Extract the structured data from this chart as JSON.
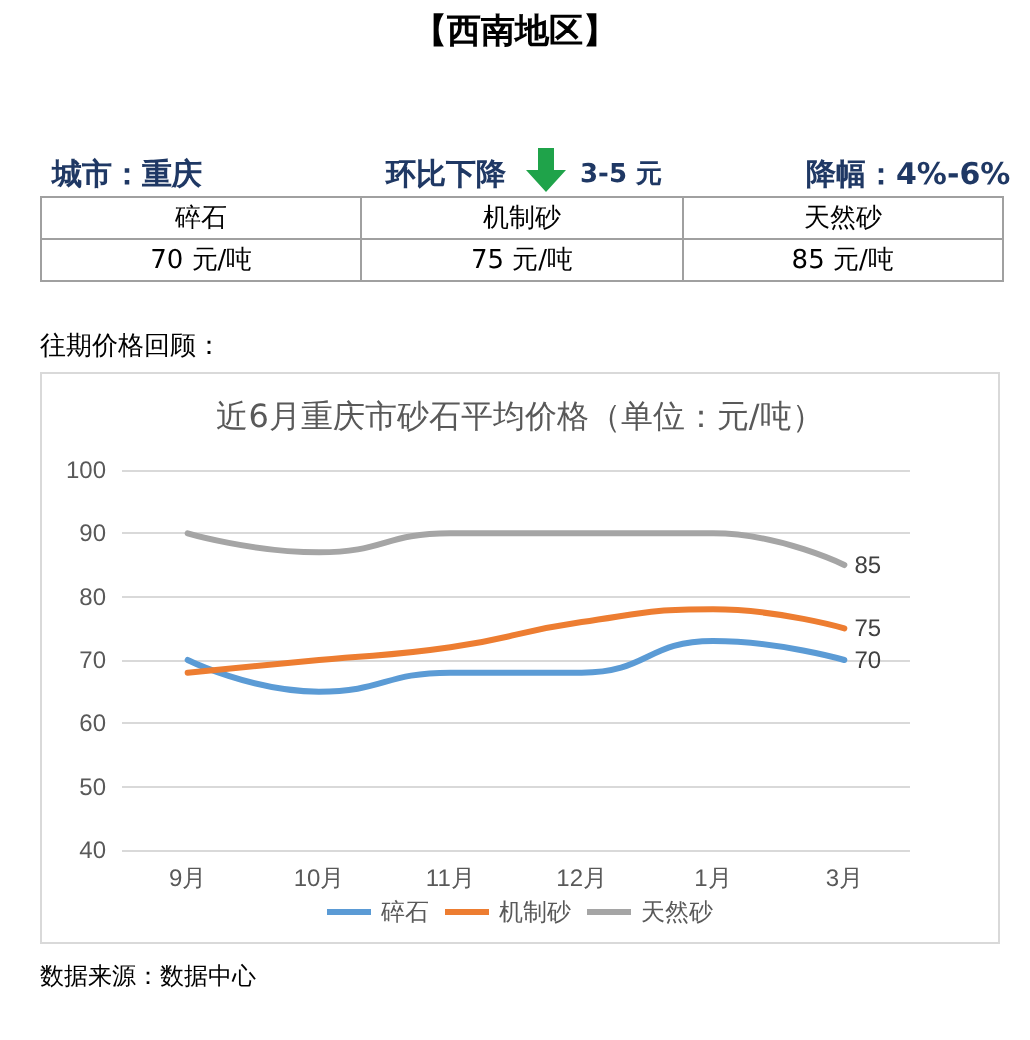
{
  "chart_data": {
    "type": "line",
    "title": "近6月重庆市砂石平均价格（单位：元/吨）",
    "categories": [
      "9月",
      "10月",
      "11月",
      "12月",
      "1月",
      "3月"
    ],
    "series": [
      {
        "name": "碎石",
        "color": "#5b9bd5",
        "values": [
          70,
          65,
          68,
          68,
          73,
          70
        ],
        "value_labels": [
          null,
          null,
          null,
          null,
          null,
          "70"
        ]
      },
      {
        "name": "机制砂",
        "color": "#ed7d31",
        "values": [
          68,
          70,
          72,
          76,
          78,
          75
        ],
        "value_labels": [
          null,
          null,
          null,
          null,
          null,
          "75"
        ]
      },
      {
        "name": "天然砂",
        "color": "#a5a5a5",
        "values": [
          90,
          87,
          90,
          90,
          90,
          85
        ],
        "value_labels": [
          null,
          null,
          null,
          null,
          null,
          "85"
        ]
      }
    ],
    "ylim": [
      40,
      100
    ],
    "yticks": [
      40,
      50,
      60,
      70,
      80,
      90,
      100
    ],
    "grid": "y",
    "legend": "bottom",
    "marker": "none",
    "line_style": "solid",
    "annotations": [
      "【西南地区】",
      "城市：重庆",
      "环比下降",
      "3-5 元",
      "降幅：4%-6%",
      "碎石",
      "机制砂",
      "天然砂",
      "70 元/吨",
      "75 元/吨",
      "85 元/吨",
      "往期价格回顾：",
      "数据来源：数据中心"
    ]
  }
}
